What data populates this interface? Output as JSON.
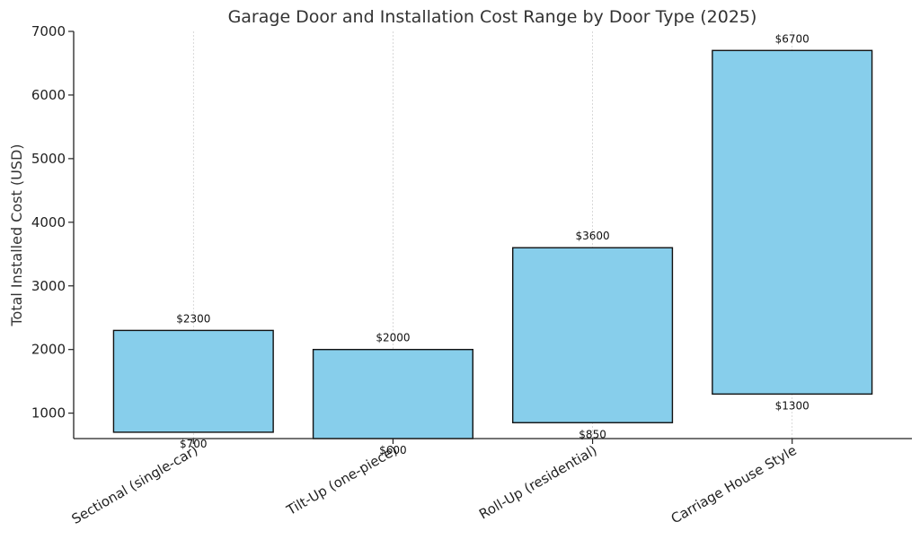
{
  "chart_data": {
    "type": "bar",
    "subtype": "floating-range",
    "title": "Garage Door and Installation Cost Range by Door Type (2025)",
    "xlabel": "",
    "ylabel": "Total Installed Cost (USD)",
    "ylim": [
      600,
      7000
    ],
    "yticks": [
      1000,
      2000,
      3000,
      4000,
      5000,
      6000,
      7000
    ],
    "grid": "x-only",
    "legend": "none",
    "bar_color": "#87CEEB",
    "categories": [
      "Sectional (single-car)",
      "Tilt-Up (one-piece)",
      "Roll-Up (residential)",
      "Carriage House Style"
    ],
    "low": [
      700,
      600,
      850,
      1300
    ],
    "high": [
      2300,
      2000,
      3600,
      6700
    ],
    "low_labels": [
      "$700",
      "$600",
      "$850",
      "$1300"
    ],
    "high_labels": [
      "$2300",
      "$2000",
      "$3600",
      "$6700"
    ]
  }
}
